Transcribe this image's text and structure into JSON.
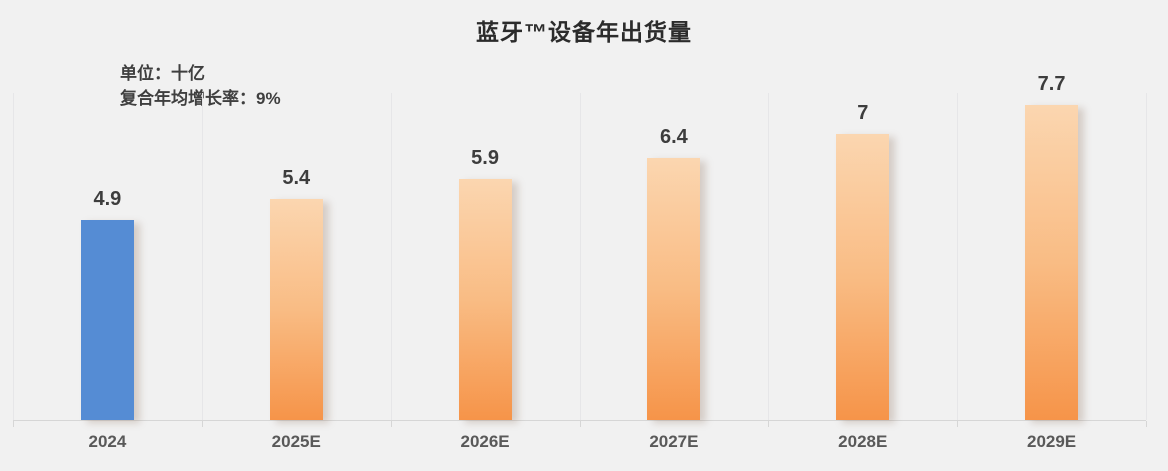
{
  "title": "蓝牙™设备年出货量",
  "notes": {
    "unit": "单位：十亿",
    "cagr": "复合年均增长率：9%"
  },
  "chart_data": {
    "type": "bar",
    "title": "蓝牙™设备年出货量",
    "subtitle_lines": [
      "单位：十亿",
      "复合年均增长率：9%"
    ],
    "categories": [
      "2024",
      "2025E",
      "2026E",
      "2027E",
      "2028E",
      "2029E"
    ],
    "values": [
      4.9,
      5.4,
      5.9,
      6.4,
      7,
      7.7
    ],
    "value_labels": [
      "4.9",
      "5.4",
      "5.9",
      "6.4",
      "7",
      "7.7"
    ],
    "xlabel": "",
    "ylabel": "",
    "ylim": [
      0,
      8
    ],
    "unit": "billions",
    "cagr_percent": 9,
    "grid": "vertical category separators only, no y-axis labels",
    "legend": "none",
    "colors": {
      "background": "#F1F1F1",
      "bar_actual_2024": "#558CD4",
      "bar_forecast_top": "#FBD6B0",
      "bar_forecast_bottom": "#F69449",
      "axis_line": "#D6D6D6",
      "gridline": "#E6E6E8",
      "value_label_text": "#3D3D3D",
      "axis_label_text": "#595959"
    }
  }
}
